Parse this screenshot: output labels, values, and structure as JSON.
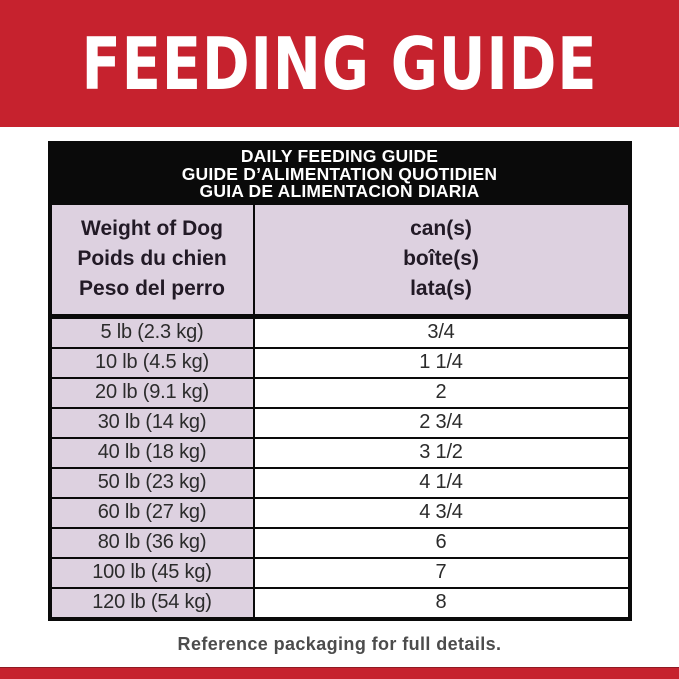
{
  "banner": {
    "title": "FEEDING GUIDE",
    "bg_color": "#c6222e",
    "text_color": "#ffffff"
  },
  "table": {
    "title_lines": [
      "DAILY FEEDING GUIDE",
      "GUIDE D’ALIMENTATION QUOTIDIEN",
      "GUIA DE ALIMENTACION DIARIA"
    ],
    "weight_header_lines": [
      "Weight of Dog",
      "Poids du chien",
      "Peso del perro"
    ],
    "amount_header_lines": [
      "can(s)",
      "boîte(s)",
      "lata(s)"
    ],
    "rows": [
      {
        "weight": "5 lb (2.3 kg)",
        "cans": "3/4"
      },
      {
        "weight": "10 lb (4.5 kg)",
        "cans": "1 1/4"
      },
      {
        "weight": "20 lb (9.1 kg)",
        "cans": "2"
      },
      {
        "weight": "30 lb (14 kg)",
        "cans": "2 3/4"
      },
      {
        "weight": "40 lb (18 kg)",
        "cans": "3 1/2"
      },
      {
        "weight": "50 lb (23 kg)",
        "cans": "4 1/4"
      },
      {
        "weight": "60 lb (27 kg)",
        "cans": "4 3/4"
      },
      {
        "weight": "80 lb (36 kg)",
        "cans": "6"
      },
      {
        "weight": "100 lb (45 kg)",
        "cans": "7"
      },
      {
        "weight": "120 lb (54 kg)",
        "cans": "8"
      }
    ],
    "header_bg": "#0a0a0a",
    "row_accent_bg": "#ddd1e0"
  },
  "footer": {
    "note": "Reference packaging for full details."
  }
}
